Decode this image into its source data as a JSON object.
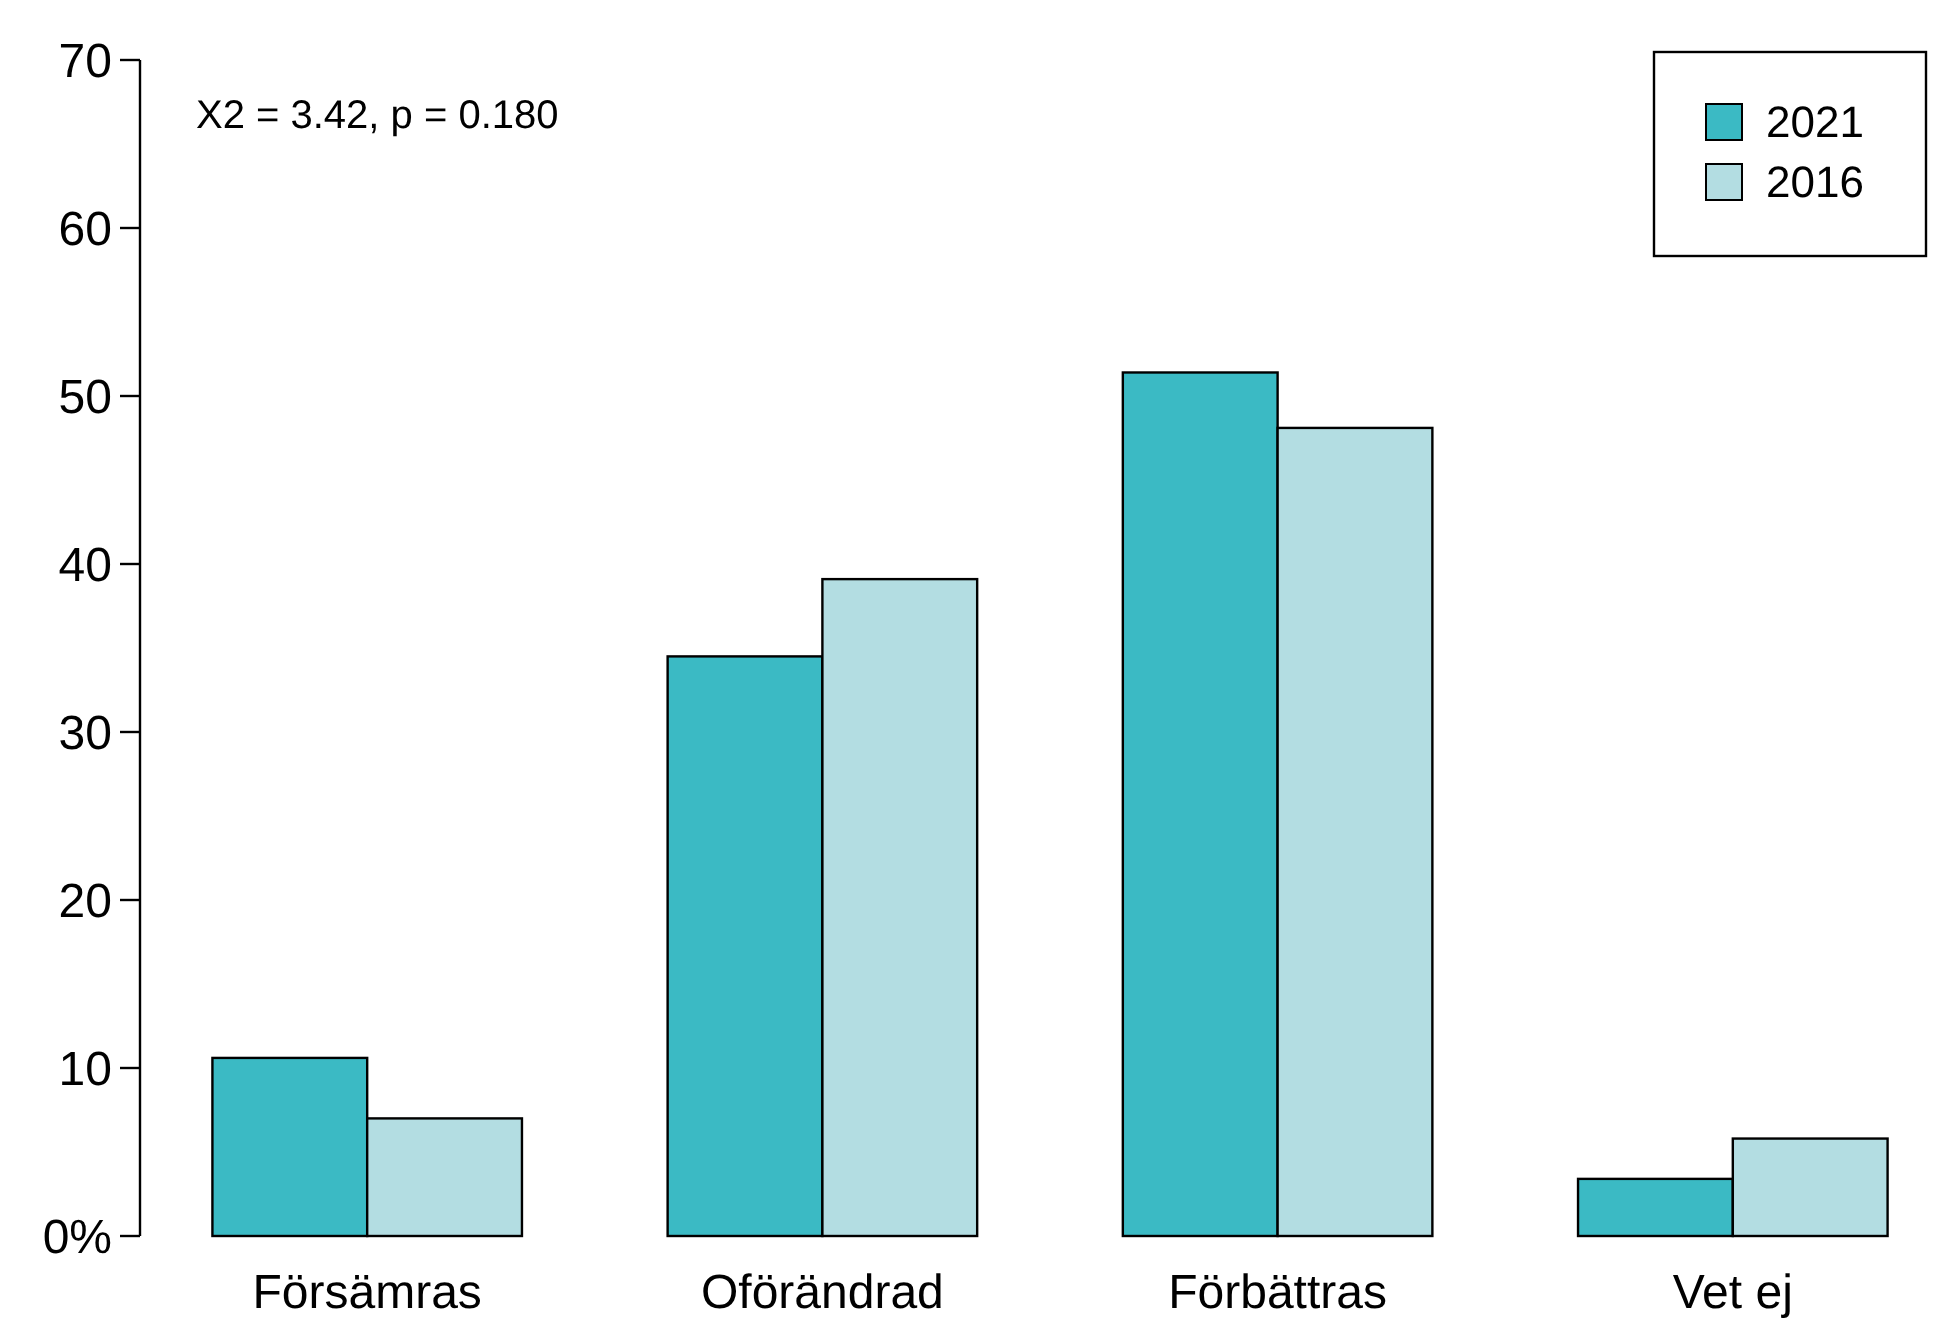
{
  "chart_data": {
    "type": "bar",
    "categories": [
      "Försämras",
      "Oförändrad",
      "Förbättras",
      "Vet ej"
    ],
    "series": [
      {
        "name": "2021",
        "color": "#3bbac4",
        "values": [
          10.6,
          34.5,
          51.4,
          3.4
        ]
      },
      {
        "name": "2016",
        "color": "#b3dde2",
        "values": [
          7.0,
          39.1,
          48.1,
          5.8
        ]
      }
    ],
    "ylim": [
      0,
      70
    ],
    "yticks": [
      {
        "value": 0,
        "label": "0%"
      },
      10,
      20,
      30,
      40,
      50,
      60,
      70
    ],
    "annotations": [
      "X2 = 3.42, p = 0.180"
    ],
    "legend": "top right",
    "grid": false
  }
}
